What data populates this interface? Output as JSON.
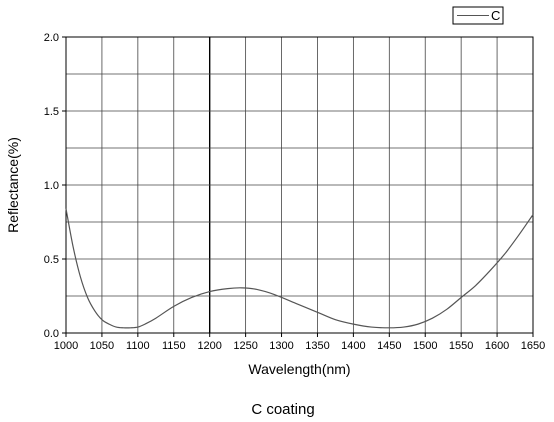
{
  "chart_data": {
    "type": "line",
    "title": "",
    "caption": "C coating",
    "xlabel": "Wavelength(nm)",
    "ylabel": "Reflectance(%)",
    "xlim": [
      1000,
      1650
    ],
    "ylim": [
      0.0,
      2.0
    ],
    "x_ticks": [
      1000,
      1050,
      1100,
      1150,
      1200,
      1250,
      1300,
      1350,
      1400,
      1450,
      1500,
      1550,
      1600,
      1650
    ],
    "x_tick_labels": [
      "1000",
      "1050",
      "1100",
      "1150",
      "1200",
      "1250",
      "1300",
      "1350",
      "1400",
      "1450",
      "1500",
      "1550",
      "1600",
      "1650"
    ],
    "y_ticks": [
      0.0,
      0.5,
      1.0,
      1.5,
      2.0
    ],
    "y_tick_labels": [
      "0.0",
      "0.5",
      "1.0",
      "1.5",
      "2.0"
    ],
    "y_minor_ticks": [
      0.25,
      0.75,
      1.25,
      1.75
    ],
    "grid": true,
    "legend": {
      "position": "top-right"
    },
    "series": [
      {
        "name": "C",
        "color": "#555555",
        "x": [
          1000,
          1010,
          1020,
          1030,
          1040,
          1050,
          1060,
          1070,
          1080,
          1090,
          1100,
          1110,
          1125,
          1150,
          1175,
          1200,
          1225,
          1245,
          1265,
          1290,
          1320,
          1350,
          1375,
          1400,
          1425,
          1450,
          1470,
          1490,
          1510,
          1530,
          1550,
          1570,
          1590,
          1610,
          1630,
          1650
        ],
        "y": [
          0.84,
          0.58,
          0.38,
          0.24,
          0.15,
          0.09,
          0.06,
          0.04,
          0.035,
          0.035,
          0.04,
          0.06,
          0.1,
          0.18,
          0.24,
          0.28,
          0.3,
          0.305,
          0.295,
          0.26,
          0.2,
          0.14,
          0.09,
          0.06,
          0.04,
          0.035,
          0.04,
          0.06,
          0.1,
          0.16,
          0.24,
          0.32,
          0.42,
          0.53,
          0.66,
          0.8
        ]
      }
    ]
  }
}
